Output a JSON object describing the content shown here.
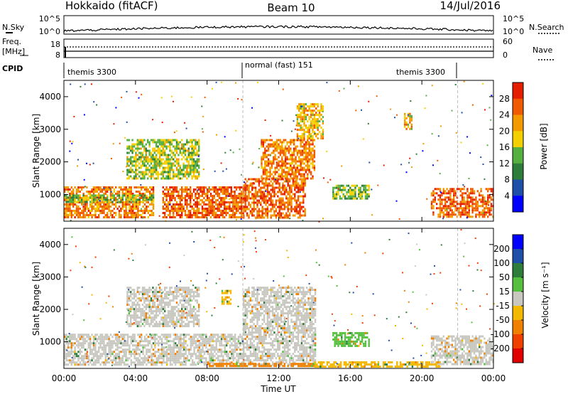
{
  "header": {
    "radar": "Hokkaido (fitACF)",
    "beam": "Beam 10",
    "date": "14/Jul/2016"
  },
  "top_panels": {
    "nsky_label": "N.Sky",
    "nsky_ticks": [
      "10^5",
      "10^0"
    ],
    "nsearch_label": "N.Search",
    "nsearch_ticks": [
      "10^5",
      "10^0"
    ],
    "freq_label_1": "Freq.",
    "freq_label_2": "[MHz]",
    "freq_ticks": [
      "18",
      "8"
    ],
    "nave_label": "Nave",
    "nave_ticks": [
      "60",
      "0"
    ],
    "cpid_label": "CPID",
    "cpid_segments": [
      {
        "label": "themis 3300",
        "start_hour": 0,
        "end_hour": 10
      },
      {
        "label": "normal (fast) 151",
        "start_hour": 10,
        "end_hour": 22
      },
      {
        "label": "themis 3300",
        "start_hour": 22,
        "end_hour": 24
      }
    ]
  },
  "x_axis": {
    "label": "Time UT",
    "ticks": [
      "00:00",
      "04:00",
      "08:00",
      "12:00",
      "16:00",
      "20:00",
      "00:00"
    ],
    "range_hours": [
      0,
      24
    ]
  },
  "y_axis": {
    "label": "Slant Range [km]",
    "ticks": [
      "1000",
      "2000",
      "3000",
      "4000"
    ],
    "range_km": [
      180,
      4500
    ]
  },
  "power_colorbar": {
    "label": "Power [dB]",
    "ticks": [
      "4",
      "8",
      "12",
      "16",
      "20",
      "24",
      "28"
    ],
    "colors": [
      "#0000ff",
      "#1f4fa8",
      "#2e7d3a",
      "#55b040",
      "#f4d000",
      "#f39a00",
      "#f05a00",
      "#e51e00"
    ]
  },
  "velocity_colorbar": {
    "label": "Velocity [m s⁻¹]",
    "ticks": [
      "200",
      "100",
      "50",
      "15",
      "-15",
      "-50",
      "-100",
      "-200"
    ],
    "colors": [
      "#0000ff",
      "#1f4fa8",
      "#2e7d3a",
      "#55c040",
      "#c8c8c0",
      "#f4b800",
      "#f08000",
      "#f04000",
      "#e00000"
    ]
  },
  "chart_data": [
    {
      "type": "heatmap",
      "title": "Power",
      "ylabel": "Slant Range [km]",
      "xlabel": "",
      "colorbar_label": "Power [dB]",
      "xlim_hours": [
        0,
        24
      ],
      "ylim_km": [
        180,
        4500
      ],
      "colorbar_range": [
        0,
        32
      ],
      "regions": [
        {
          "t0": 0.0,
          "t1": 5.0,
          "r0": 300,
          "r1": 1250,
          "level": 24
        },
        {
          "t0": 0.0,
          "t1": 5.0,
          "r0": 800,
          "r1": 1000,
          "level": 14
        },
        {
          "t0": 5.5,
          "t1": 10.0,
          "r0": 300,
          "r1": 1250,
          "level": 26
        },
        {
          "t0": 10.0,
          "t1": 13.5,
          "r0": 300,
          "r1": 1500,
          "level": 26
        },
        {
          "t0": 11.0,
          "t1": 14.0,
          "r0": 1500,
          "r1": 2700,
          "level": 24
        },
        {
          "t0": 13.0,
          "t1": 14.5,
          "r0": 2700,
          "r1": 3800,
          "level": 20
        },
        {
          "t0": 15.0,
          "t1": 17.0,
          "r0": 900,
          "r1": 1300,
          "level": 14
        },
        {
          "t0": 19.0,
          "t1": 19.4,
          "r0": 3000,
          "r1": 3500,
          "level": 20
        },
        {
          "t0": 20.5,
          "t1": 24.0,
          "r0": 300,
          "r1": 1200,
          "level": 26
        },
        {
          "t0": 3.5,
          "t1": 7.5,
          "r0": 1500,
          "r1": 2700,
          "level": 16
        }
      ]
    },
    {
      "type": "heatmap",
      "title": "Velocity",
      "ylabel": "Slant Range [km]",
      "xlabel": "Time UT",
      "colorbar_label": "Velocity [m s⁻¹]",
      "xlim_hours": [
        0,
        24
      ],
      "ylim_km": [
        180,
        4500
      ],
      "colorbar_range": [
        -250,
        250
      ],
      "regions": [
        {
          "t0": 0.0,
          "t1": 10.0,
          "r0": 300,
          "r1": 1250,
          "level": 0
        },
        {
          "t0": 10.0,
          "t1": 14.0,
          "r0": 300,
          "r1": 2700,
          "level": 0
        },
        {
          "t0": 3.5,
          "t1": 7.5,
          "r0": 1500,
          "r1": 2700,
          "level": 0
        },
        {
          "t0": 20.5,
          "t1": 24.0,
          "r0": 300,
          "r1": 1200,
          "level": 0
        },
        {
          "t0": 8.0,
          "t1": 14.0,
          "r0": 250,
          "r1": 350,
          "level": -60
        },
        {
          "t0": 14.0,
          "t1": 21.0,
          "r0": 250,
          "r1": 400,
          "level": -30
        },
        {
          "t0": 8.8,
          "t1": 9.3,
          "r0": 2200,
          "r1": 2600,
          "level": -40
        },
        {
          "t0": 15.0,
          "t1": 17.0,
          "r0": 900,
          "r1": 1300,
          "level": 30
        }
      ]
    }
  ]
}
